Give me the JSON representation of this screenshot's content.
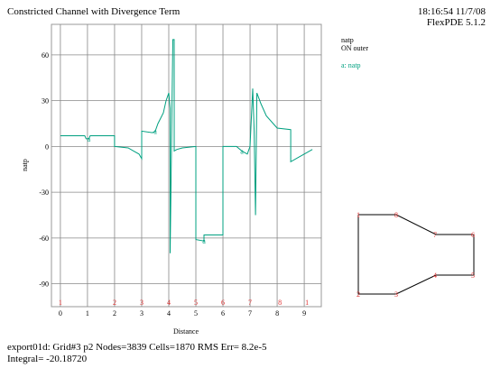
{
  "chart_data": {
    "type": "line",
    "title": "Constricted Channel with Divergence Term",
    "timestamp": "18:16:54 11/7/08",
    "software": "FlexPDE 5.1.2",
    "plot_variable": "natp",
    "plot_region": "ON outer",
    "xlabel": "Distance",
    "ylabel": "natp",
    "x": [
      0,
      0.9,
      0.95,
      1.05,
      1.1,
      2,
      2,
      2.5,
      2.7,
      2.9,
      3,
      3,
      3.4,
      3.5,
      3.6,
      3.8,
      3.9,
      4.0,
      4.05,
      4.05,
      4.1,
      4.15,
      4.2,
      4.2,
      4.3,
      4.5,
      5,
      5,
      5.3,
      5.3,
      6,
      6,
      6.5,
      6.7,
      6.9,
      7,
      7.1,
      7.15,
      7.2,
      7.25,
      7.4,
      7.6,
      8,
      8.5,
      8.5,
      8.8,
      9,
      9.3
    ],
    "series": [
      {
        "name": "a: natp",
        "marker": "a",
        "color": "#00a080",
        "values": [
          7,
          7,
          5,
          5,
          7,
          7,
          0,
          -1,
          -3,
          -5,
          -8,
          10,
          9,
          10,
          15,
          22,
          30,
          35,
          25,
          -70,
          0,
          70,
          70,
          -3,
          -2,
          -1,
          0,
          -61,
          -62,
          -58,
          -58,
          0,
          0,
          -3,
          -5,
          0,
          38,
          10,
          -45,
          35,
          28,
          20,
          12,
          11,
          -10,
          -7,
          -5,
          -2
        ]
      }
    ],
    "xlim": [
      -0.33,
      9.63
    ],
    "ylim": [
      -105,
      80
    ],
    "xticks": [
      0,
      1,
      2,
      3,
      4,
      5,
      6,
      7,
      8,
      9
    ],
    "yticks": [
      60,
      30,
      0,
      -30,
      -60,
      -90
    ],
    "grid": true,
    "node_markers": {
      "x": [
        0,
        2,
        3,
        4,
        5,
        6,
        7,
        8.1,
        9.1
      ],
      "labels": [
        "1",
        "2",
        "3",
        "4",
        "5",
        "6",
        "7",
        "8",
        "1"
      ],
      "color": "#e03030"
    }
  },
  "geometry": {
    "labels": [
      "1",
      "8",
      "7",
      "6",
      "5",
      "4",
      "3",
      "2"
    ]
  },
  "footer": {
    "line1": "export01d:  Grid#3  p2  Nodes=3839 Cells=1870 RMS Err= 8.2e-5",
    "line2": "Integral= -20.18720"
  }
}
